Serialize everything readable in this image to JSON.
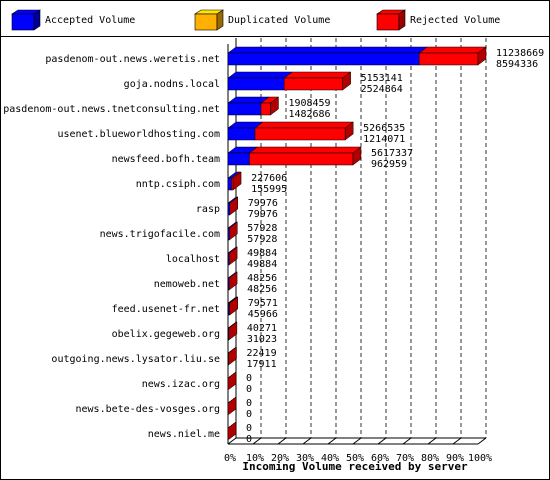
{
  "chart_data": {
    "type": "bar3d",
    "orientation": "horizontal",
    "x_label": "Incoming Volume received by server",
    "categories": [
      "pasdenom-out.news.weretis.net",
      "goja.nodns.local",
      "pasdenom-out.news.tnetconsulting.net",
      "usenet.blueworldhosting.com",
      "newsfeed.bofh.team",
      "nntp.csiph.com",
      "rasp",
      "news.trigofacile.com",
      "localhost",
      "nemoweb.net",
      "feed.usenet-fr.net",
      "obelix.gegeweb.org",
      "outgoing.news.lysator.liu.se",
      "news.izac.org",
      "news.bete-des-vosges.org",
      "news.niel.me"
    ],
    "totals": [
      11238669,
      5153141,
      1908459,
      5266535,
      5617337,
      227606,
      79976,
      57928,
      49884,
      48256,
      79571,
      40271,
      22419,
      0,
      0,
      0
    ],
    "series": [
      {
        "name": "Accepted Volume",
        "color": "#0000ff",
        "values": [
          8594336,
          2524864,
          1482686,
          1214071,
          962959,
          155995,
          79976,
          57928,
          49884,
          48256,
          45966,
          31023,
          17911,
          0,
          0,
          0
        ]
      },
      {
        "name": "Duplicated Volume",
        "color": "#ffb000",
        "values": [
          0,
          0,
          0,
          0,
          0,
          0,
          0,
          0,
          0,
          0,
          0,
          0,
          0,
          0,
          0,
          0
        ]
      },
      {
        "name": "Rejected Volume",
        "color": "#ff0000",
        "values": [
          2644333,
          2628277,
          425773,
          4052464,
          4654378,
          71611,
          0,
          0,
          0,
          0,
          33605,
          9248,
          4508,
          0,
          0,
          0
        ]
      }
    ],
    "xlim": [
      0,
      11238669
    ],
    "xticks": [
      {
        "value": 0,
        "label": "0%"
      },
      {
        "value": 1123866.9,
        "label": "10%"
      },
      {
        "value": 2247733.8,
        "label": "20%"
      },
      {
        "value": 3371600.7,
        "label": "30%"
      },
      {
        "value": 4495467.6,
        "label": "40%"
      },
      {
        "value": 5619334.5,
        "label": "50%"
      },
      {
        "value": 6743201.4,
        "label": "60%"
      },
      {
        "value": 7867068.3,
        "label": "70%"
      },
      {
        "value": 8990935.2,
        "label": "80%"
      },
      {
        "value": 10114802.1,
        "label": "90%"
      },
      {
        "value": 11238669,
        "label": "100%"
      }
    ],
    "grid": true
  }
}
